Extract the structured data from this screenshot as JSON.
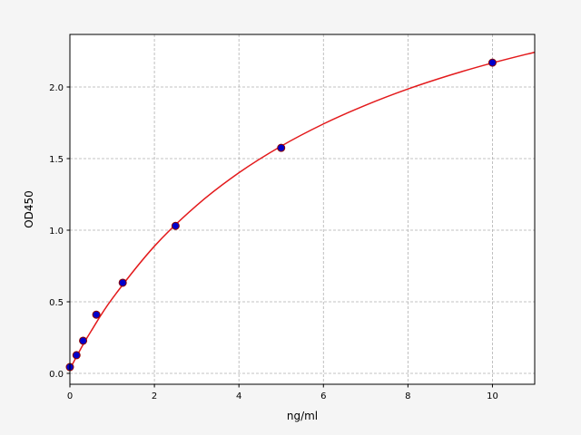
{
  "chart_data": {
    "type": "scatter",
    "title": "",
    "xlabel": "ng/ml",
    "ylabel": "OD450",
    "xlim": [
      0,
      11
    ],
    "ylim": [
      -0.076,
      2.367
    ],
    "xticks": [
      0,
      2,
      4,
      6,
      8,
      10
    ],
    "xtick_labels": [
      "0",
      "2",
      "4",
      "6",
      "8",
      "10"
    ],
    "yticks": [
      0.0,
      0.5,
      1.0,
      1.5,
      2.0
    ],
    "ytick_labels": [
      "0.0",
      "0.5",
      "1.0",
      "1.5",
      "2.0"
    ],
    "grid": true,
    "points": {
      "x": [
        0,
        0.156,
        0.3125,
        0.625,
        1.25,
        2.5,
        5,
        10
      ],
      "y": [
        0.044,
        0.127,
        0.228,
        0.41,
        0.633,
        1.03,
        1.575,
        2.17
      ],
      "color": "#0000cc",
      "edge_color": "#8b0000"
    },
    "fit_curve": {
      "x": [
        0,
        0.25,
        0.5,
        1,
        2,
        3,
        4,
        5,
        6,
        7,
        8,
        9,
        10,
        11
      ],
      "y": [
        0.03,
        0.168,
        0.294,
        0.521,
        0.888,
        1.173,
        1.401,
        1.587,
        1.742,
        1.873,
        1.986,
        2.083,
        2.168,
        2.243
      ],
      "color": "#e31a1c"
    }
  }
}
